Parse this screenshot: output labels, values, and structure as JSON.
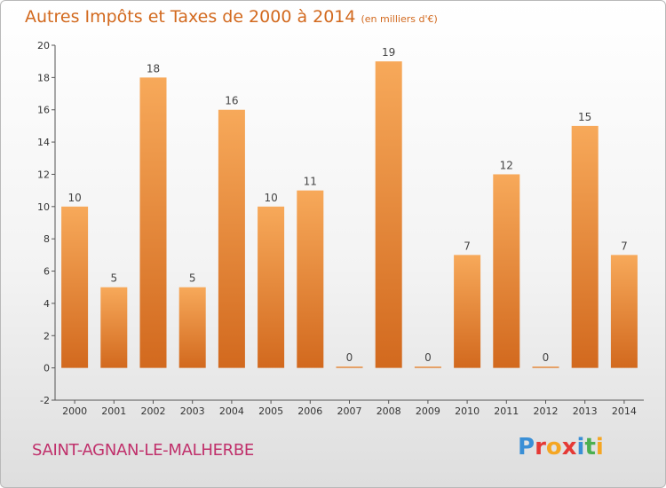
{
  "header": {
    "title": "Autres Impôts et Taxes de 2000 à 2014",
    "unit": "(en milliers d'€)"
  },
  "footer": {
    "commune": "SAINT-AGNAN-LE-MALHERBE",
    "logo": "Proxiti",
    "logo_colors": [
      "#3a8fd6",
      "#e53935",
      "#f5a623",
      "#e53935",
      "#3a8fd6",
      "#4caf50",
      "#f5a623"
    ]
  },
  "colors": {
    "bar_top": "#f7a95a",
    "bar_bottom": "#d2691e",
    "title": "#d2691e",
    "commune": "#c0306b"
  },
  "chart_data": {
    "type": "bar",
    "title": "Autres Impôts et Taxes de 2000 à 2014",
    "subtitle": "(en milliers d'€)",
    "categories": [
      "2000",
      "2001",
      "2002",
      "2003",
      "2004",
      "2005",
      "2006",
      "2007",
      "2008",
      "2009",
      "2010",
      "2011",
      "2012",
      "2013",
      "2014"
    ],
    "values": [
      10,
      5,
      18,
      5,
      16,
      10,
      11,
      0,
      19,
      0,
      7,
      12,
      0,
      15,
      7
    ],
    "ylim": [
      -2,
      20
    ],
    "yticks": [
      -2,
      0,
      2,
      4,
      6,
      8,
      10,
      12,
      14,
      16,
      18,
      20
    ],
    "grid": false,
    "legend": "none",
    "data_labels": true
  }
}
